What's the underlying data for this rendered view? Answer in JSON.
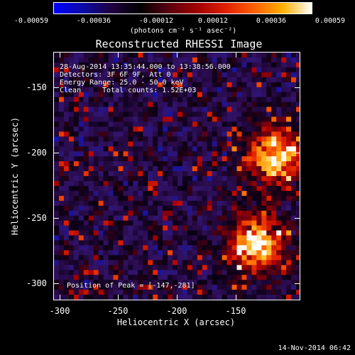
{
  "colorbar": {
    "ticks": [
      "-0.00059",
      "-0.00036",
      "-0.00012",
      "0.00012",
      "0.00036",
      "0.00059"
    ],
    "units": "(photons cm⁻² s⁻¹ asec⁻²)",
    "colors": [
      "#0000ff",
      "#0a0aa8",
      "#200040",
      "#000000",
      "#5a0010",
      "#a00000",
      "#e02000",
      "#ff6000",
      "#ffb000",
      "#ffffff"
    ]
  },
  "chart_data": {
    "type": "heatmap",
    "title": "Reconstructed RHESSI Image",
    "xlabel": "Heliocentric X (arcsec)",
    "ylabel": "Heliocentric Y (arcsec)",
    "xlim": [
      -310,
      -115
    ],
    "ylim": [
      -315,
      -125
    ],
    "xticks": [
      "-300",
      "-250",
      "-200",
      "-150"
    ],
    "yticks": [
      "-150",
      "-200",
      "-250",
      "-300"
    ],
    "sources": [
      {
        "x": -135,
        "y": -205,
        "intensity": 0.95
      },
      {
        "x": -150,
        "y": -272,
        "intensity": 1.0
      }
    ],
    "annotations": {
      "time_range": "28-Aug-2014 13:35:44.000 to 13:38:56.000",
      "detectors": "Detectors: 3F 6F 9F, Att 0",
      "energy": "Energy Range: 25.0 - 50.0 keV",
      "method": "Clean",
      "total_counts": "Total counts: 1.52E+03",
      "peak": "Position of Peak = [-147,-281]"
    }
  },
  "footer": {
    "timestamp": "14-Nov-2014 06:42"
  }
}
